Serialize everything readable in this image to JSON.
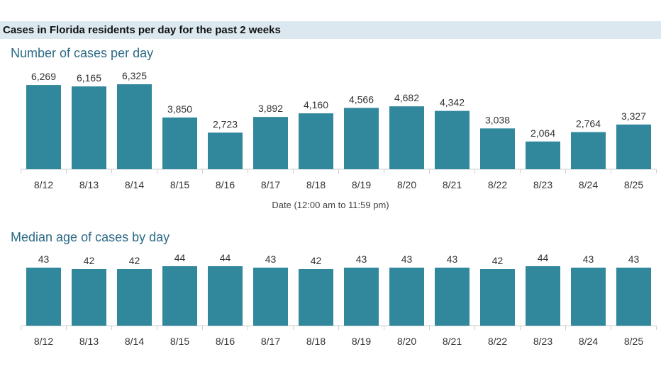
{
  "header": {
    "title": "Cases in Florida residents per day for the past 2 weeks"
  },
  "colors": {
    "bar": "#31889c",
    "banner": "#dbe8ef",
    "title": "#2c6a86"
  },
  "chart_data": [
    {
      "type": "bar",
      "title": "Number of cases per day",
      "xlabel": "Date (12:00 am to 11:59 pm)",
      "ylabel": "",
      "categories": [
        "8/12",
        "8/13",
        "8/14",
        "8/15",
        "8/16",
        "8/17",
        "8/18",
        "8/19",
        "8/20",
        "8/21",
        "8/22",
        "8/23",
        "8/24",
        "8/25"
      ],
      "values": [
        6269,
        6165,
        6325,
        3850,
        2723,
        3892,
        4160,
        4566,
        4682,
        4342,
        3038,
        2064,
        2764,
        3327
      ],
      "value_labels": [
        "6,269",
        "6,165",
        "6,325",
        "3,850",
        "2,723",
        "3,892",
        "4,160",
        "4,566",
        "4,682",
        "4,342",
        "3,038",
        "2,064",
        "2,764",
        "3,327"
      ],
      "ylim": [
        0,
        6325
      ],
      "grid": false
    },
    {
      "type": "bar",
      "title": "Median age of cases by day",
      "xlabel": "",
      "ylabel": "",
      "categories": [
        "8/12",
        "8/13",
        "8/14",
        "8/15",
        "8/16",
        "8/17",
        "8/18",
        "8/19",
        "8/20",
        "8/21",
        "8/22",
        "8/23",
        "8/24",
        "8/25"
      ],
      "values": [
        43,
        42,
        42,
        44,
        44,
        43,
        42,
        43,
        43,
        43,
        42,
        44,
        43,
        43
      ],
      "value_labels": [
        "43",
        "42",
        "42",
        "44",
        "44",
        "43",
        "42",
        "43",
        "43",
        "43",
        "42",
        "44",
        "43",
        "43"
      ],
      "ylim": [
        0,
        44
      ],
      "grid": false
    }
  ]
}
